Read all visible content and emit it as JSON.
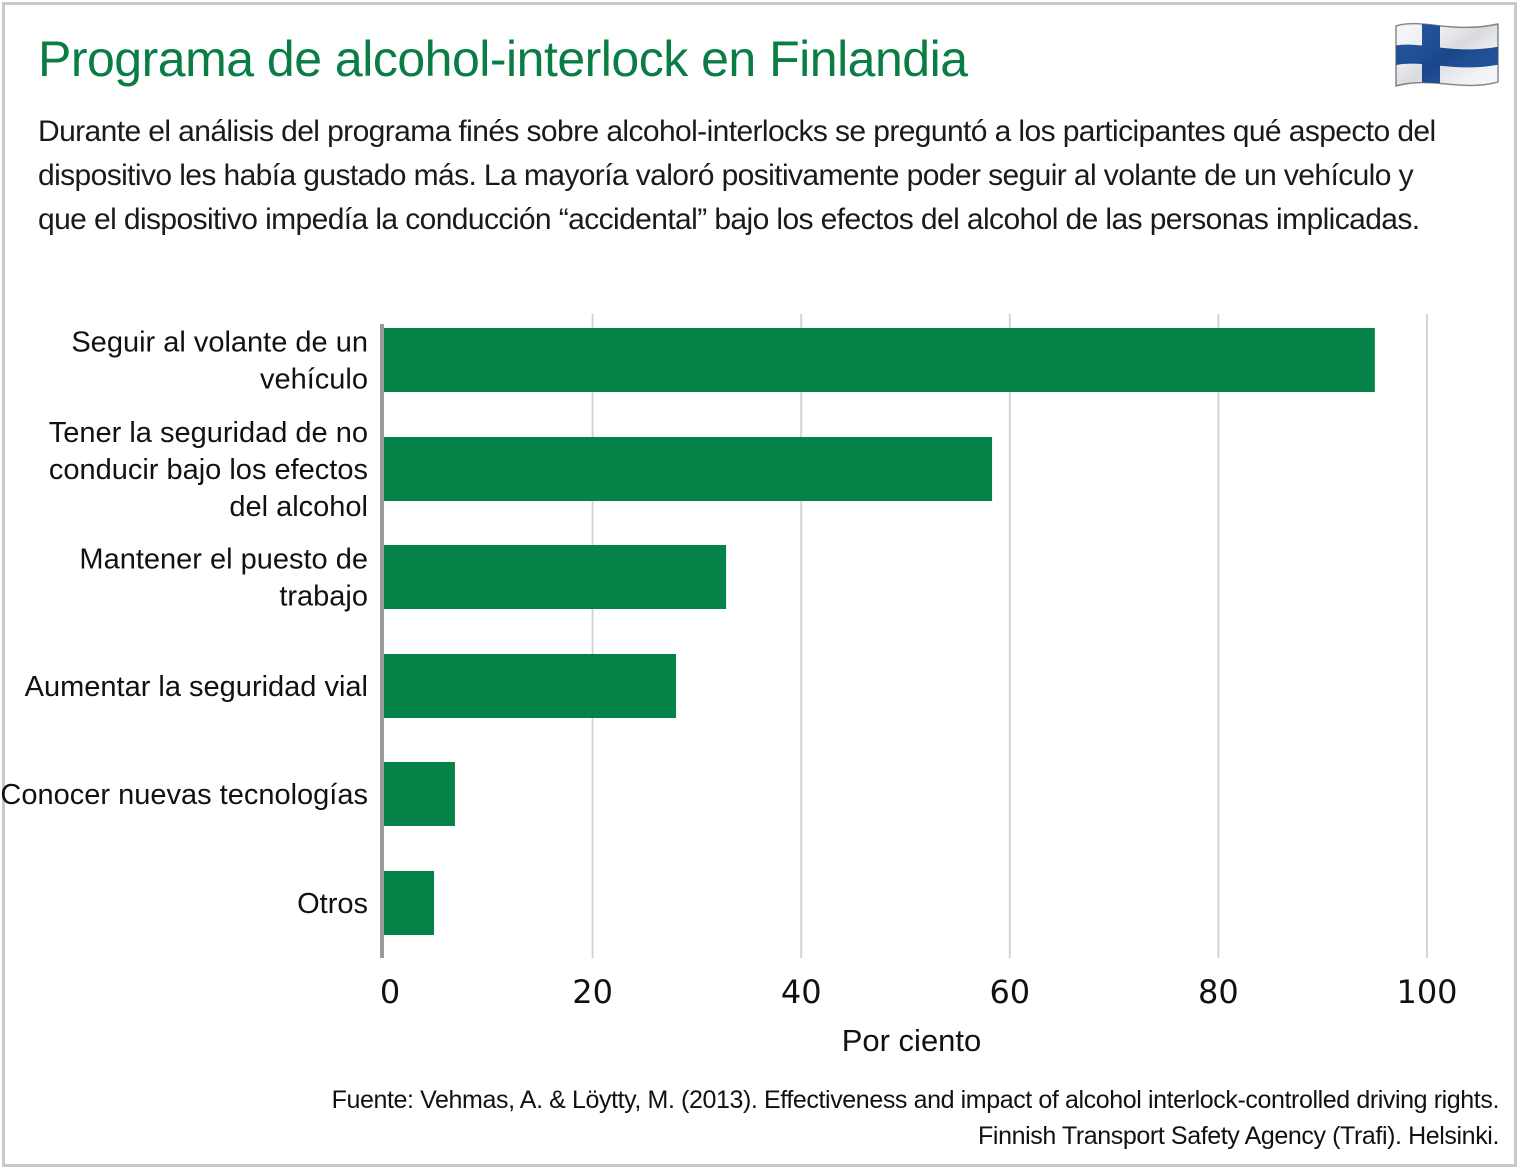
{
  "title": "Programa de alcohol-interlock en Finlandia",
  "subtitle_lines": [
    "Durante el análisis del programa finés sobre alcohol-interlocks se preguntó a los participantes qué aspecto del",
    "dispositivo les había gustado más. La mayoría valoró positivamente poder seguir al volante de un vehículo y",
    "que el dispositivo impedía la conducción “accidental” bajo los efectos del alcohol de las personas implicadas."
  ],
  "source_lines": [
    "Fuente: Vehmas, A. & Löytty, M. (2013). Effectiveness and impact of alcohol interlock-controlled driving rights.",
    "Finnish Transport Safety Agency (Trafi). Helsinki."
  ],
  "flag_icon": "finland-flag-icon",
  "colors": {
    "title": "#0a7d44",
    "bar": "#058247",
    "grid": "#d4d4d4",
    "axis": "#9a9a9a"
  },
  "chart_data": {
    "type": "bar",
    "orientation": "horizontal",
    "categories": [
      [
        "Seguir al volante de un",
        "vehículo"
      ],
      [
        "Tener la seguridad de no",
        "conducir bajo los efectos",
        "del alcohol"
      ],
      [
        "Mantener el puesto de",
        "trabajo"
      ],
      [
        "Aumentar la seguridad vial"
      ],
      [
        "Conocer nuevas tecnologías"
      ],
      [
        "Otros"
      ]
    ],
    "values": [
      95,
      58.3,
      32.8,
      28,
      6.8,
      4.8
    ],
    "xlabel": "Por ciento",
    "ylabel": "",
    "xlim": [
      0,
      100
    ],
    "xticks": [
      "0",
      "20",
      "40",
      "60",
      "80",
      "100"
    ],
    "grid": true,
    "legend": "none"
  }
}
